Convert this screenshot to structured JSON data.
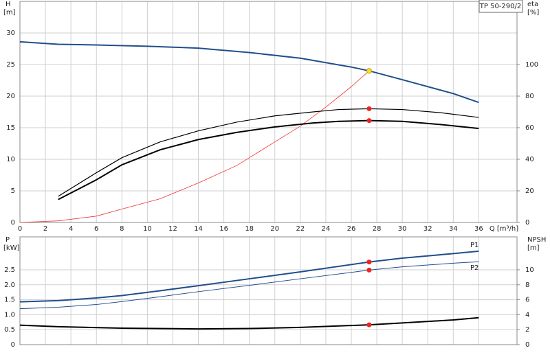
{
  "chart_data": [
    {
      "type": "line",
      "title": "TP 50-290/2",
      "y_label": "H",
      "y_unit": "[m]",
      "y2_label": "eta",
      "y2_unit": "[%]",
      "x_label": "Q [m³/h]",
      "xlim": [
        0,
        39
      ],
      "xticks": [
        0,
        2,
        4,
        6,
        8,
        10,
        12,
        14,
        16,
        18,
        20,
        22,
        24,
        26,
        28,
        30,
        32,
        34,
        36
      ],
      "ylim": [
        0,
        35
      ],
      "yticks": [
        0,
        5,
        10,
        15,
        20,
        25,
        30
      ],
      "y2lim": [
        0,
        140
      ],
      "y2ticks": [
        0,
        20,
        40,
        60,
        80,
        100
      ],
      "grid": true,
      "series": [
        {
          "color": "#1f4e8c",
          "width": 2,
          "x": [
            0,
            3,
            6,
            10,
            14,
            18,
            22,
            26,
            27.4,
            30,
            34,
            36
          ],
          "values": [
            28.6,
            28.2,
            28.1,
            27.9,
            27.6,
            26.9,
            26.0,
            24.6,
            24.0,
            22.6,
            20.4,
            19.0
          ]
        },
        {
          "color": "#ee3333",
          "width": 0.8,
          "axis": "y2",
          "x": [
            0,
            3,
            6,
            8,
            11,
            14,
            17,
            20,
            22,
            24,
            26,
            27.4
          ],
          "values": [
            0,
            1,
            4,
            8.5,
            15,
            25,
            36,
            51,
            61,
            73,
            86,
            96
          ]
        },
        {
          "color": "#000000",
          "width": 1.2,
          "axis": "y2",
          "x": [
            3,
            6,
            8,
            11,
            14,
            17,
            20,
            23,
            25,
            27.4,
            30,
            33,
            36
          ],
          "values": [
            16.5,
            31.5,
            41,
            51,
            58,
            63.5,
            67.5,
            70,
            71.5,
            72,
            71.5,
            69.5,
            66.5
          ]
        },
        {
          "color": "#000000",
          "width": 2,
          "axis": "y2",
          "x": [
            3,
            6,
            8,
            11,
            14,
            17,
            20,
            23,
            25,
            27.4,
            30,
            33,
            36
          ],
          "values": [
            14.5,
            27,
            36.5,
            46,
            52.5,
            57,
            60.5,
            63,
            64,
            64.5,
            64,
            62,
            59.5
          ]
        },
        {
          "color": "#ffdd22",
          "marker": true,
          "x": [
            27.4
          ],
          "values": [
            24.0
          ]
        },
        {
          "color": "#ee2222",
          "marker": true,
          "axis": "y2",
          "x": [
            27.4,
            27.4
          ],
          "values": [
            72,
            64.5
          ]
        }
      ]
    },
    {
      "type": "line",
      "y_label": "P",
      "y_unit": "[kW]",
      "y2_label": "NPSH",
      "y2_unit": "[m]",
      "xlim": [
        0,
        39
      ],
      "xticks": [
        0,
        2,
        4,
        6,
        8,
        10,
        12,
        14,
        16,
        18,
        20,
        22,
        24,
        26,
        28,
        30,
        32,
        34,
        36
      ],
      "ylim": [
        0,
        3.6
      ],
      "yticks": [
        0,
        0.5,
        {
          "value": 1,
          "label": "1.0"
        },
        1.5,
        {
          "value": 2,
          "label": "2.0"
        },
        2.5
      ],
      "y2lim": [
        0,
        14.4
      ],
      "y2ticks": [
        0,
        2,
        4,
        6,
        8,
        10
      ],
      "grid": true,
      "series": [
        {
          "name": "P1",
          "color": "#1f4e8c",
          "width": 2,
          "x": [
            0,
            3,
            6,
            8,
            11,
            14,
            18,
            22,
            27.4,
            30,
            34,
            36
          ],
          "values": [
            1.43,
            1.47,
            1.56,
            1.64,
            1.8,
            1.97,
            2.2,
            2.43,
            2.76,
            2.89,
            3.04,
            3.12
          ]
        },
        {
          "name": "P2",
          "color": "#1f4e8c",
          "width": 1,
          "x": [
            0,
            3,
            6,
            8,
            11,
            14,
            18,
            22,
            27.4,
            30,
            34,
            36
          ],
          "values": [
            1.2,
            1.25,
            1.34,
            1.44,
            1.6,
            1.77,
            1.98,
            2.2,
            2.49,
            2.6,
            2.72,
            2.77
          ]
        },
        {
          "color": "#000000",
          "width": 2,
          "axis": "y2",
          "x": [
            0,
            3,
            8,
            14,
            18,
            22,
            27.4,
            30,
            34,
            36
          ],
          "values": [
            2.6,
            2.4,
            2.2,
            2.1,
            2.15,
            2.3,
            2.65,
            2.9,
            3.3,
            3.6
          ]
        },
        {
          "color": "#ee2222",
          "marker": true,
          "x": [
            27.4,
            27.4
          ],
          "values": [
            2.76,
            2.49
          ]
        },
        {
          "color": "#ee2222",
          "marker": true,
          "axis": "y2",
          "x": [
            27.4
          ],
          "values": [
            2.65
          ]
        }
      ]
    }
  ]
}
